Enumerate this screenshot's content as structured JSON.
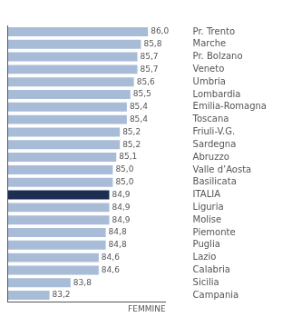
{
  "chart_data": {
    "type": "bar",
    "orientation": "horizontal",
    "categories": [
      "Pr. Trento",
      "Marche",
      "Pr. Bolzano",
      "Veneto",
      "Umbria",
      "Lombardia",
      "Emilia-Romagna",
      "Toscana",
      "Friuli-V.G.",
      "Sardegna",
      "Abruzzo",
      "Valle d’Aosta",
      "Basilicata",
      "ITALIA",
      "Liguria",
      "Molise",
      "Piemonte",
      "Puglia",
      "Lazio",
      "Calabria",
      "Sicilia",
      "Campania"
    ],
    "values": [
      86.0,
      85.8,
      85.7,
      85.7,
      85.6,
      85.5,
      85.4,
      85.4,
      85.2,
      85.2,
      85.1,
      85.0,
      85.0,
      84.9,
      84.9,
      84.9,
      84.8,
      84.8,
      84.6,
      84.6,
      83.8,
      83.2
    ],
    "value_labels": [
      "86,0",
      "85,8",
      "85,7",
      "85,7",
      "85,6",
      "85,5",
      "85,4",
      "85,4",
      "85,2",
      "85,2",
      "85,1",
      "85,0",
      "85,0",
      "84,9",
      "84,9",
      "84,9",
      "84,8",
      "84,8",
      "84,6",
      "84,6",
      "83,8",
      "83,2"
    ],
    "colors": [
      "#a8bcd8",
      "#a8bcd8",
      "#a8bcd8",
      "#a8bcd8",
      "#a8bcd8",
      "#a8bcd8",
      "#a8bcd8",
      "#a8bcd8",
      "#a8bcd8",
      "#a8bcd8",
      "#a8bcd8",
      "#a8bcd8",
      "#a8bcd8",
      "#1c2e52",
      "#a8bcd8",
      "#a8bcd8",
      "#a8bcd8",
      "#a8bcd8",
      "#a8bcd8",
      "#a8bcd8",
      "#a8bcd8",
      "#a8bcd8"
    ],
    "xlim": [
      82.0,
      86.5
    ],
    "data_labels": true,
    "tick_labels": "y",
    "grid": false,
    "annotations": [
      "FEMMINE"
    ]
  }
}
